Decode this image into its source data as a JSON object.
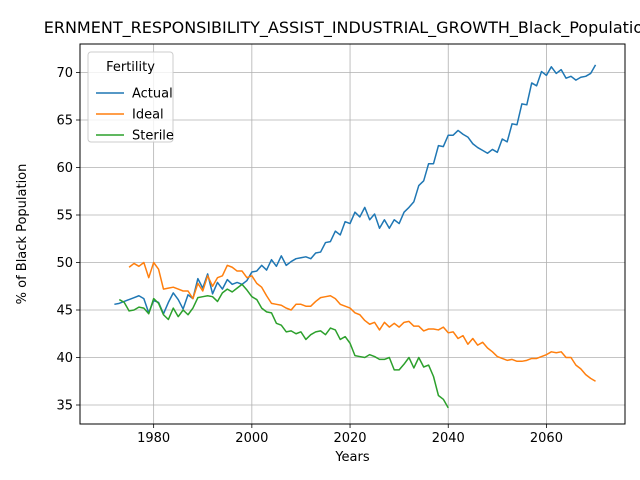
{
  "chart_data": {
    "type": "line",
    "title": "ERNMENT_RESPONSIBILITY_ASSIST_INDUSTRIAL_GROWTH_Black_Population_",
    "xlabel": "Years",
    "ylabel": "% of Black Population",
    "xlim": [
      1965,
      2076
    ],
    "ylim": [
      33,
      73
    ],
    "xticks": [
      1980,
      2000,
      2020,
      2040,
      2060
    ],
    "yticks": [
      35,
      40,
      45,
      50,
      55,
      60,
      65,
      70
    ],
    "grid": true,
    "legend": {
      "title": "Fertility",
      "placement": "top-left"
    },
    "series": [
      {
        "name": "Actual",
        "color": "#1f77b4",
        "x": [
          1972,
          1973,
          1974,
          1975,
          1976,
          1977,
          1978,
          1979,
          1980,
          1981,
          1982,
          1983,
          1984,
          1985,
          1986,
          1987,
          1988,
          1989,
          1990,
          1991,
          1992,
          1993,
          1994,
          1995,
          1996,
          1997,
          1998,
          1999,
          2000,
          2001,
          2002,
          2003,
          2004,
          2005,
          2006,
          2007,
          2008,
          2009,
          2010,
          2011,
          2012,
          2013,
          2014,
          2015,
          2016,
          2017,
          2018,
          2019,
          2020,
          2021,
          2022,
          2023,
          2024,
          2025,
          2026,
          2027,
          2028,
          2029,
          2030,
          2031,
          2032,
          2033,
          2034,
          2035,
          2036,
          2037,
          2038,
          2039,
          2040,
          2041,
          2042,
          2043,
          2044,
          2045,
          2046,
          2047,
          2048,
          2049,
          2050,
          2051,
          2052,
          2053,
          2054,
          2055,
          2056,
          2057,
          2058,
          2059,
          2060,
          2061,
          2062,
          2063,
          2064,
          2065,
          2066,
          2067,
          2068,
          2069,
          2070
        ],
        "y": [
          45.6,
          45.7,
          45.9,
          46.1,
          46.3,
          46.5,
          46.2,
          44.7,
          46.0,
          45.8,
          44.6,
          45.8,
          46.8,
          46.1,
          45.1,
          46.6,
          46.2,
          48.3,
          47.3,
          48.8,
          46.7,
          47.9,
          47.2,
          48.2,
          47.7,
          47.9,
          47.7,
          48.1,
          49.0,
          49.1,
          49.7,
          49.2,
          50.3,
          49.6,
          50.7,
          49.7,
          50.1,
          50.4,
          50.5,
          50.6,
          50.4,
          51.0,
          51.1,
          52.1,
          52.2,
          53.3,
          52.9,
          54.3,
          54.1,
          55.3,
          54.8,
          55.8,
          54.5,
          55.1,
          53.6,
          54.5,
          53.6,
          54.5,
          54.1,
          55.3,
          55.8,
          56.4,
          58.1,
          58.6,
          60.4,
          60.4,
          62.3,
          62.2,
          63.4,
          63.4,
          63.9,
          63.5,
          63.2,
          62.5,
          62.1,
          61.8,
          61.5,
          61.9,
          61.6,
          63.0,
          62.7,
          64.6,
          64.5,
          66.7,
          66.6,
          68.9,
          68.6,
          70.1,
          69.7,
          70.6,
          69.9,
          70.3,
          69.4,
          69.6,
          69.2,
          69.5,
          69.6,
          69.9,
          70.8
        ]
      },
      {
        "name": "Ideal",
        "color": "#ff7f0e",
        "x": [
          1975,
          1976,
          1977,
          1978,
          1979,
          1980,
          1981,
          1982,
          1983,
          1984,
          1985,
          1986,
          1987,
          1988,
          1989,
          1990,
          1991,
          1992,
          1993,
          1994,
          1995,
          1996,
          1997,
          1998,
          1999,
          2000,
          2001,
          2002,
          2003,
          2004,
          2005,
          2006,
          2007,
          2008,
          2009,
          2010,
          2011,
          2012,
          2013,
          2014,
          2015,
          2016,
          2017,
          2018,
          2019,
          2020,
          2021,
          2022,
          2023,
          2024,
          2025,
          2026,
          2027,
          2028,
          2029,
          2030,
          2031,
          2032,
          2033,
          2034,
          2035,
          2036,
          2037,
          2038,
          2039,
          2040,
          2041,
          2042,
          2043,
          2044,
          2045,
          2046,
          2047,
          2048,
          2049,
          2050,
          2051,
          2052,
          2053,
          2054,
          2055,
          2056,
          2057,
          2058,
          2059,
          2060,
          2061,
          2062,
          2063,
          2064,
          2065,
          2066,
          2067,
          2068,
          2069,
          2070
        ],
        "y": [
          49.5,
          49.9,
          49.6,
          50.0,
          48.4,
          50.0,
          49.3,
          47.2,
          47.3,
          47.4,
          47.2,
          47.0,
          47.0,
          46.2,
          47.8,
          47.0,
          48.6,
          47.5,
          48.4,
          48.6,
          49.7,
          49.5,
          49.1,
          49.1,
          48.4,
          48.6,
          47.8,
          47.4,
          46.5,
          45.7,
          45.6,
          45.5,
          45.2,
          45.0,
          45.6,
          45.6,
          45.4,
          45.4,
          45.9,
          46.3,
          46.4,
          46.5,
          46.2,
          45.6,
          45.4,
          45.2,
          44.7,
          44.5,
          43.9,
          43.5,
          43.7,
          42.9,
          43.7,
          43.2,
          43.6,
          43.2,
          43.7,
          43.8,
          43.3,
          43.3,
          42.8,
          43.0,
          43.0,
          42.9,
          43.2,
          42.6,
          42.7,
          42.0,
          42.3,
          41.4,
          42.0,
          41.3,
          41.6,
          41.0,
          40.6,
          40.1,
          39.9,
          39.7,
          39.8,
          39.6,
          39.6,
          39.7,
          39.9,
          39.9,
          40.1,
          40.3,
          40.6,
          40.5,
          40.6,
          40.0,
          40.0,
          39.2,
          38.8,
          38.2,
          37.8,
          37.5
        ]
      },
      {
        "name": "Sterile",
        "color": "#2ca02c",
        "x": [
          1973,
          1974,
          1975,
          1976,
          1977,
          1978,
          1979,
          1980,
          1981,
          1982,
          1983,
          1984,
          1985,
          1986,
          1987,
          1988,
          1989,
          1990,
          1991,
          1992,
          1993,
          1994,
          1995,
          1996,
          1997,
          1998,
          1999,
          2000,
          2001,
          2002,
          2003,
          2004,
          2005,
          2006,
          2007,
          2008,
          2009,
          2010,
          2011,
          2012,
          2013,
          2014,
          2015,
          2016,
          2017,
          2018,
          2019,
          2020,
          2021,
          2022,
          2023,
          2024,
          2025,
          2026,
          2027,
          2028,
          2029,
          2030,
          2031,
          2032,
          2033,
          2034,
          2035,
          2036,
          2037,
          2038,
          2039,
          2040
        ],
        "y": [
          46.1,
          45.8,
          44.9,
          45.0,
          45.3,
          45.2,
          44.6,
          46.2,
          45.7,
          44.5,
          44.0,
          45.2,
          44.3,
          45.0,
          44.5,
          45.2,
          46.3,
          46.4,
          46.5,
          46.4,
          45.9,
          46.8,
          47.2,
          46.9,
          47.3,
          47.7,
          47.1,
          46.4,
          46.1,
          45.2,
          44.8,
          44.7,
          43.6,
          43.4,
          42.7,
          42.8,
          42.5,
          42.7,
          41.9,
          42.4,
          42.7,
          42.8,
          42.4,
          43.1,
          42.9,
          41.9,
          42.2,
          41.5,
          40.2,
          40.1,
          40.0,
          40.3,
          40.1,
          39.8,
          39.8,
          40.0,
          38.7,
          38.7,
          39.3,
          40.0,
          38.9,
          40.0,
          39.0,
          39.2,
          38.0,
          36.0,
          35.6,
          34.7
        ]
      }
    ]
  }
}
